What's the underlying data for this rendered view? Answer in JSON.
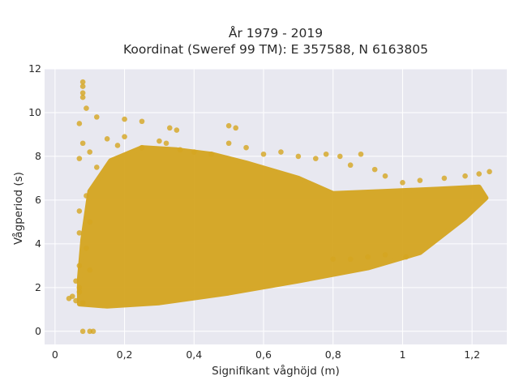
{
  "chart_data": {
    "type": "scatter",
    "title_lines": [
      "År 1979 - 2019",
      "Koordinat (Sweref 99 TM): E 357588, N 6163805"
    ],
    "xlabel": "Signifikant våghöjd (m)",
    "ylabel": "Vågperiod (s)",
    "xlim": [
      -0.03,
      1.3
    ],
    "ylim": [
      -0.6,
      12
    ],
    "xticks": [
      0,
      0.2,
      0.4,
      0.6,
      0.8,
      1,
      1.2
    ],
    "xtick_labels": [
      "0",
      "0,2",
      "0,4",
      "0,6",
      "0,8",
      "1",
      "1,2"
    ],
    "yticks": [
      0,
      2,
      4,
      6,
      8,
      10,
      12
    ],
    "ytick_labels": [
      "0",
      "2",
      "4",
      "6",
      "8",
      "10",
      "12"
    ],
    "grid": true,
    "colors": {
      "marker": "#d4a520",
      "plot_bg": "#e8e8f0",
      "grid": "#ffffff"
    },
    "series": [
      {
        "points": [
          [
            0.04,
            1.5
          ],
          [
            0.05,
            1.6
          ],
          [
            0.06,
            1.4
          ],
          [
            0.07,
            1.8
          ],
          [
            0.08,
            1.3
          ],
          [
            0.08,
            0.0
          ],
          [
            0.1,
            0.0
          ],
          [
            0.11,
            0.0
          ],
          [
            0.08,
            11.4
          ],
          [
            0.08,
            11.2
          ],
          [
            0.08,
            10.9
          ],
          [
            0.08,
            10.7
          ],
          [
            0.09,
            10.2
          ],
          [
            0.07,
            9.5
          ],
          [
            0.12,
            9.8
          ],
          [
            0.2,
            9.7
          ],
          [
            0.25,
            9.6
          ],
          [
            0.33,
            9.3
          ],
          [
            0.35,
            9.2
          ],
          [
            0.5,
            9.4
          ],
          [
            0.52,
            9.3
          ],
          [
            0.07,
            7.9
          ],
          [
            0.08,
            8.6
          ],
          [
            0.1,
            8.2
          ],
          [
            0.12,
            7.5
          ],
          [
            0.15,
            8.8
          ],
          [
            0.18,
            8.5
          ],
          [
            0.2,
            8.9
          ],
          [
            0.25,
            8.4
          ],
          [
            0.3,
            8.7
          ],
          [
            0.32,
            8.6
          ],
          [
            0.36,
            8.3
          ],
          [
            0.4,
            8.2
          ],
          [
            0.45,
            8.1
          ],
          [
            0.5,
            8.6
          ],
          [
            0.55,
            8.4
          ],
          [
            0.6,
            8.1
          ],
          [
            0.65,
            8.2
          ],
          [
            0.7,
            8.0
          ],
          [
            0.75,
            7.9
          ],
          [
            0.78,
            8.1
          ],
          [
            0.82,
            8.0
          ],
          [
            0.85,
            7.6
          ],
          [
            0.88,
            8.1
          ],
          [
            0.92,
            7.4
          ],
          [
            0.95,
            7.1
          ],
          [
            1.0,
            6.8
          ],
          [
            1.05,
            6.9
          ],
          [
            1.12,
            7.0
          ],
          [
            1.18,
            7.1
          ],
          [
            1.22,
            7.2
          ],
          [
            1.25,
            7.3
          ],
          [
            0.07,
            5.5
          ],
          [
            0.07,
            4.5
          ],
          [
            0.07,
            3.0
          ],
          [
            0.06,
            2.3
          ],
          [
            0.07,
            2.0
          ],
          [
            0.9,
            3.4
          ],
          [
            0.95,
            3.5
          ],
          [
            1.01,
            3.4
          ],
          [
            0.85,
            3.3
          ],
          [
            0.8,
            3.3
          ],
          [
            0.09,
            6.2
          ],
          [
            0.1,
            5.0
          ],
          [
            0.09,
            3.8
          ],
          [
            0.1,
            2.8
          ]
        ]
      }
    ]
  }
}
